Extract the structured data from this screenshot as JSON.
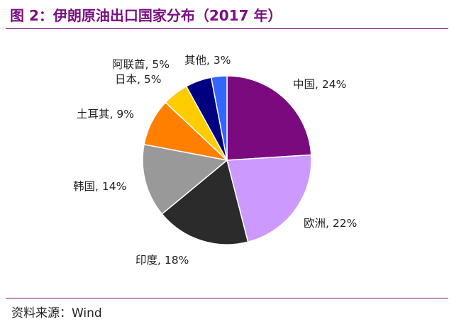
{
  "title": "图 2：伊朗原油出口国家分布（2017 年）",
  "source": "资料来源：Wind",
  "chart_data": {
    "type": "pie",
    "slices": [
      {
        "label": "中国",
        "value": 24,
        "text": "中国, 24%",
        "color": "#7b0a7f"
      },
      {
        "label": "欧洲",
        "value": 22,
        "text": "欧洲, 22%",
        "color": "#cc99ff"
      },
      {
        "label": "印度",
        "value": 18,
        "text": "印度, 18%",
        "color": "#2b2b2b"
      },
      {
        "label": "韩国",
        "value": 14,
        "text": "韩国, 14%",
        "color": "#999999"
      },
      {
        "label": "土耳其",
        "value": 9,
        "text": "土耳其, 9%",
        "color": "#ff8000"
      },
      {
        "label": "日本",
        "value": 5,
        "text": "日本, 5%",
        "color": "#ffcc00"
      },
      {
        "label": "阿联酋",
        "value": 5,
        "text": "阿联酋, 5%",
        "color": "#000080"
      },
      {
        "label": "其他",
        "value": 3,
        "text": "其他, 3%",
        "color": "#3366ff"
      }
    ]
  }
}
